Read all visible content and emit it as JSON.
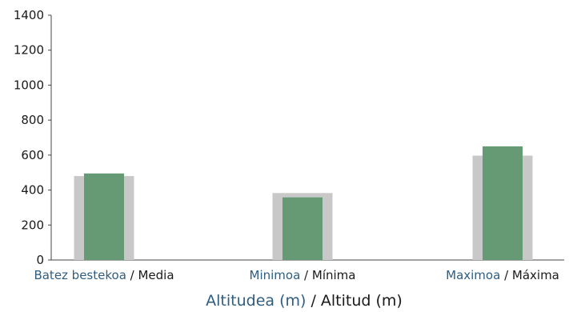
{
  "chart_data": {
    "type": "bar",
    "categories": [
      {
        "eu": "Batez bestekoa",
        "sep": " / ",
        "es": "Media"
      },
      {
        "eu": "Minimoa",
        "sep": " / ",
        "es": "Mínima"
      },
      {
        "eu": "Maximoa",
        "sep": " / ",
        "es": "Máxima"
      }
    ],
    "series": [
      {
        "color": "#c8c8c8",
        "values": [
          480,
          383,
          597
        ]
      },
      {
        "color": "#659a74",
        "values": [
          495,
          358,
          650
        ]
      }
    ],
    "xlabel": {
      "eu": "Altitudea (m)",
      "sep": " / ",
      "es": "Altitud (m)"
    },
    "ylabel": "",
    "ylim": [
      0,
      1400
    ],
    "yticks": [
      0,
      200,
      400,
      600,
      800,
      1000,
      1200,
      1400
    ],
    "grid": false,
    "legend": "none"
  }
}
